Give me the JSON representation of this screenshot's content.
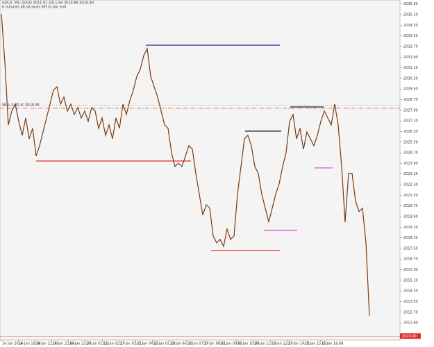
{
  "chart_data": {
    "type": "line",
    "title": "GOLD, M1:  GOLD  2011.51 2011.94 2010.89 2010.90",
    "subtitle": "0 minutes 46 seconds left to bar end",
    "series": [
      {
        "name": "GOLD",
        "color": "#7a3a10",
        "values": [
          2035.16,
          2031.5,
          2026.8,
          2027.84,
          2028.36,
          2027.06,
          2026.01,
          2027.32,
          2025.75,
          2026.54,
          2024.45,
          2025.23,
          2026.27,
          2027.32,
          2028.36,
          2029.41,
          2029.67,
          2028.36,
          2028.89,
          2027.84,
          2028.36,
          2027.58,
          2028.1,
          2027.32,
          2027.84,
          2027.06,
          2028.1,
          2027.84,
          2026.54,
          2027.32,
          2026.01,
          2026.8,
          2025.75,
          2027.32,
          2026.54,
          2028.36,
          2027.58,
          2028.63,
          2029.41,
          2030.45,
          2030.98,
          2032.02,
          2032.54,
          2030.45,
          2029.67,
          2028.89,
          2027.84,
          2026.8,
          2026.54,
          2024.71,
          2023.66,
          2023.92,
          2023.66,
          2024.45,
          2025.23,
          2024.97,
          2023.14,
          2021.57,
          2020.01,
          2020.79,
          2020.53,
          2018.44,
          2017.92,
          2018.18,
          2017.65,
          2018.96,
          2018.18,
          2018.44,
          2021.57,
          2023.66,
          2025.75,
          2026.01,
          2025.23,
          2023.66,
          2023.14,
          2021.57,
          2020.53,
          2019.48,
          2020.53,
          2021.57,
          2022.36,
          2023.66,
          2024.71,
          2027.06,
          2027.58,
          2025.75,
          2026.54,
          2024.97,
          2026.27,
          2025.75,
          2025.23,
          2026.01,
          2027.06,
          2027.84,
          2027.32,
          2026.8,
          2028.36,
          2026.8,
          2023.66,
          2019.48,
          2023.14,
          2023.14,
          2021.05,
          2020.27,
          2020.53,
          2017.92,
          2012.43
        ]
      }
    ],
    "levels": [
      {
        "value": 2032.8,
        "color": "#1a1a9a"
      },
      {
        "value": 2024.08,
        "color": "#e03030"
      },
      {
        "value": 2017.34,
        "color": "#e03030"
      },
      {
        "value": 2026.33,
        "color": "#000000"
      },
      {
        "value": 2028.15,
        "color": "#000000"
      },
      {
        "value": 2018.86,
        "color": "#e040e0"
      },
      {
        "value": 2023.56,
        "color": "#e040e0"
      }
    ],
    "order_line": {
      "value": 2028.05,
      "color": "#e06040",
      "label": "SELL 0.30 at 2028.34"
    },
    "bid_line": {
      "value": 2028.26,
      "color": "#70a070"
    },
    "last_price": {
      "value": 2010.9,
      "label": "2010.90",
      "color": "#e03030"
    },
    "x_labels": [
      "16 Jan 2024",
      "16 Jan 19:56",
      "16 Jan 21:00",
      "16 Jan 22:04",
      "16 Jan 23:08",
      "17 Jan 01:12",
      "17 Jan 02:17",
      "17 Jan 03:21",
      "17 Jan 04:25",
      "17 Jan 05:29",
      "17 Jan 06:33",
      "17 Jan 07:37",
      "17 Jan 08:41",
      "17 Jan 09:45",
      "17 Jan 10:49",
      "17 Jan 11:53",
      "17 Jan 12:57",
      "17 Jan 14:01",
      "17 Jan 15:05",
      "17 Jan 16:09"
    ],
    "ylim": [
      2010.6,
      2036.2
    ],
    "yticks": [
      {
        "value": 2035.9,
        "label": "2035.90"
      },
      {
        "value": 2035.1,
        "label": "2035.10"
      },
      {
        "value": 2034.3,
        "label": "2034.30"
      },
      {
        "value": 2033.5,
        "label": "2033.50"
      },
      {
        "value": 2032.7,
        "label": "2032.70"
      },
      {
        "value": 2031.9,
        "label": "2031.90"
      },
      {
        "value": 2031.1,
        "label": "2031.10"
      },
      {
        "value": 2030.3,
        "label": "2030.30"
      },
      {
        "value": 2029.5,
        "label": "2029.50"
      },
      {
        "value": 2028.7,
        "label": "2028.70"
      },
      {
        "value": 2027.9,
        "label": "2027.90"
      },
      {
        "value": 2027.1,
        "label": "2027.10"
      },
      {
        "value": 2026.3,
        "label": "2026.30"
      },
      {
        "value": 2025.5,
        "label": "2025.50"
      },
      {
        "value": 2024.7,
        "label": "2024.70"
      },
      {
        "value": 2023.9,
        "label": "2023.90"
      },
      {
        "value": 2023.1,
        "label": "2023.10"
      },
      {
        "value": 2022.3,
        "label": "2022.30"
      },
      {
        "value": 2021.5,
        "label": "2021.50"
      },
      {
        "value": 2020.7,
        "label": "2020.70"
      },
      {
        "value": 2019.9,
        "label": "2019.90"
      },
      {
        "value": 2019.1,
        "label": "2019.10"
      },
      {
        "value": 2018.3,
        "label": "2018.30"
      },
      {
        "value": 2017.5,
        "label": "2017.50"
      },
      {
        "value": 2016.7,
        "label": "2016.70"
      },
      {
        "value": 2015.9,
        "label": "2015.90"
      },
      {
        "value": 2015.1,
        "label": "2015.10"
      },
      {
        "value": 2014.3,
        "label": "2014.30"
      },
      {
        "value": 2013.5,
        "label": "2013.50"
      },
      {
        "value": 2012.7,
        "label": "2012.70"
      },
      {
        "value": 2011.9,
        "label": "2011.90"
      }
    ]
  }
}
